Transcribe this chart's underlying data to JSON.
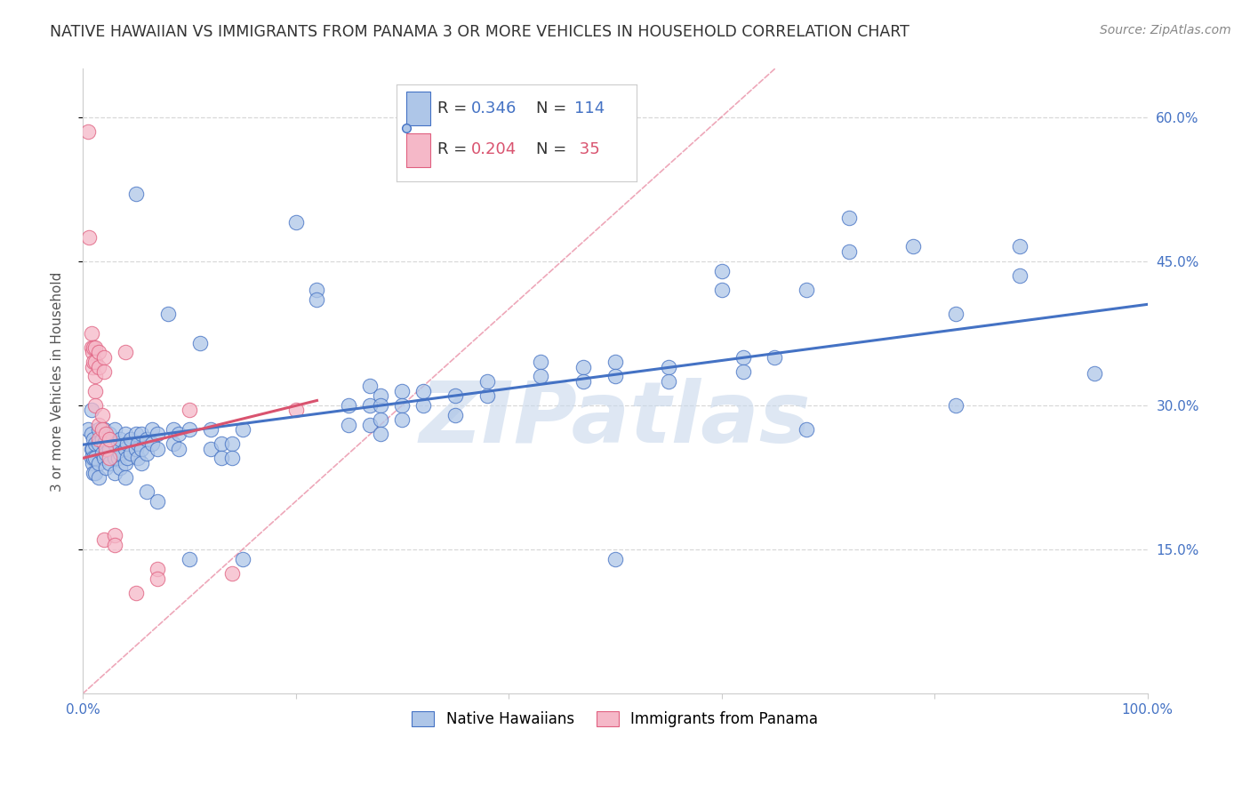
{
  "title": "NATIVE HAWAIIAN VS IMMIGRANTS FROM PANAMA 3 OR MORE VEHICLES IN HOUSEHOLD CORRELATION CHART",
  "source": "Source: ZipAtlas.com",
  "ylabel": "3 or more Vehicles in Household",
  "xmin": 0.0,
  "xmax": 1.0,
  "ymin": 0.0,
  "ymax": 0.65,
  "yticks": [
    0.15,
    0.3,
    0.45,
    0.6
  ],
  "ytick_labels": [
    "15.0%",
    "30.0%",
    "45.0%",
    "60.0%"
  ],
  "blue_color": "#aec6e8",
  "blue_edge_color": "#4472c4",
  "pink_color": "#f5b8c8",
  "pink_edge_color": "#e06080",
  "blue_line_color": "#4472c4",
  "pink_line_color": "#d9536f",
  "text_color": "#4472c4",
  "blue_scatter": [
    [
      0.005,
      0.275
    ],
    [
      0.008,
      0.295
    ],
    [
      0.008,
      0.27
    ],
    [
      0.008,
      0.255
    ],
    [
      0.008,
      0.245
    ],
    [
      0.009,
      0.255
    ],
    [
      0.009,
      0.24
    ],
    [
      0.01,
      0.265
    ],
    [
      0.01,
      0.245
    ],
    [
      0.01,
      0.23
    ],
    [
      0.012,
      0.26
    ],
    [
      0.012,
      0.245
    ],
    [
      0.012,
      0.23
    ],
    [
      0.015,
      0.275
    ],
    [
      0.015,
      0.26
    ],
    [
      0.015,
      0.24
    ],
    [
      0.015,
      0.225
    ],
    [
      0.018,
      0.265
    ],
    [
      0.018,
      0.25
    ],
    [
      0.02,
      0.275
    ],
    [
      0.02,
      0.26
    ],
    [
      0.02,
      0.245
    ],
    [
      0.022,
      0.265
    ],
    [
      0.022,
      0.25
    ],
    [
      0.022,
      0.235
    ],
    [
      0.025,
      0.27
    ],
    [
      0.025,
      0.255
    ],
    [
      0.025,
      0.24
    ],
    [
      0.03,
      0.275
    ],
    [
      0.03,
      0.26
    ],
    [
      0.03,
      0.245
    ],
    [
      0.03,
      0.23
    ],
    [
      0.033,
      0.26
    ],
    [
      0.033,
      0.245
    ],
    [
      0.035,
      0.265
    ],
    [
      0.035,
      0.25
    ],
    [
      0.035,
      0.235
    ],
    [
      0.04,
      0.27
    ],
    [
      0.04,
      0.255
    ],
    [
      0.04,
      0.24
    ],
    [
      0.04,
      0.225
    ],
    [
      0.042,
      0.26
    ],
    [
      0.042,
      0.245
    ],
    [
      0.045,
      0.265
    ],
    [
      0.045,
      0.25
    ],
    [
      0.05,
      0.52
    ],
    [
      0.05,
      0.27
    ],
    [
      0.05,
      0.255
    ],
    [
      0.052,
      0.26
    ],
    [
      0.052,
      0.245
    ],
    [
      0.055,
      0.27
    ],
    [
      0.055,
      0.255
    ],
    [
      0.055,
      0.24
    ],
    [
      0.06,
      0.265
    ],
    [
      0.06,
      0.25
    ],
    [
      0.06,
      0.21
    ],
    [
      0.065,
      0.275
    ],
    [
      0.065,
      0.26
    ],
    [
      0.07,
      0.27
    ],
    [
      0.07,
      0.255
    ],
    [
      0.07,
      0.2
    ],
    [
      0.08,
      0.395
    ],
    [
      0.085,
      0.275
    ],
    [
      0.085,
      0.26
    ],
    [
      0.09,
      0.27
    ],
    [
      0.09,
      0.255
    ],
    [
      0.1,
      0.275
    ],
    [
      0.1,
      0.14
    ],
    [
      0.11,
      0.365
    ],
    [
      0.12,
      0.275
    ],
    [
      0.12,
      0.255
    ],
    [
      0.13,
      0.26
    ],
    [
      0.13,
      0.245
    ],
    [
      0.14,
      0.26
    ],
    [
      0.14,
      0.245
    ],
    [
      0.15,
      0.275
    ],
    [
      0.15,
      0.14
    ],
    [
      0.2,
      0.49
    ],
    [
      0.22,
      0.42
    ],
    [
      0.22,
      0.41
    ],
    [
      0.25,
      0.3
    ],
    [
      0.25,
      0.28
    ],
    [
      0.27,
      0.32
    ],
    [
      0.27,
      0.3
    ],
    [
      0.27,
      0.28
    ],
    [
      0.28,
      0.31
    ],
    [
      0.28,
      0.3
    ],
    [
      0.28,
      0.285
    ],
    [
      0.28,
      0.27
    ],
    [
      0.3,
      0.315
    ],
    [
      0.3,
      0.3
    ],
    [
      0.3,
      0.285
    ],
    [
      0.32,
      0.315
    ],
    [
      0.32,
      0.3
    ],
    [
      0.35,
      0.31
    ],
    [
      0.35,
      0.29
    ],
    [
      0.38,
      0.325
    ],
    [
      0.38,
      0.31
    ],
    [
      0.43,
      0.345
    ],
    [
      0.43,
      0.33
    ],
    [
      0.47,
      0.34
    ],
    [
      0.47,
      0.325
    ],
    [
      0.5,
      0.345
    ],
    [
      0.5,
      0.33
    ],
    [
      0.5,
      0.14
    ],
    [
      0.55,
      0.34
    ],
    [
      0.55,
      0.325
    ],
    [
      0.6,
      0.44
    ],
    [
      0.6,
      0.42
    ],
    [
      0.62,
      0.35
    ],
    [
      0.62,
      0.335
    ],
    [
      0.65,
      0.35
    ],
    [
      0.68,
      0.42
    ],
    [
      0.68,
      0.275
    ],
    [
      0.72,
      0.495
    ],
    [
      0.72,
      0.46
    ],
    [
      0.78,
      0.465
    ],
    [
      0.82,
      0.395
    ],
    [
      0.82,
      0.3
    ],
    [
      0.88,
      0.465
    ],
    [
      0.88,
      0.435
    ],
    [
      0.95,
      0.333
    ]
  ],
  "pink_scatter": [
    [
      0.005,
      0.585
    ],
    [
      0.006,
      0.475
    ],
    [
      0.008,
      0.375
    ],
    [
      0.008,
      0.36
    ],
    [
      0.009,
      0.355
    ],
    [
      0.009,
      0.34
    ],
    [
      0.01,
      0.36
    ],
    [
      0.01,
      0.345
    ],
    [
      0.012,
      0.36
    ],
    [
      0.012,
      0.345
    ],
    [
      0.012,
      0.33
    ],
    [
      0.012,
      0.315
    ],
    [
      0.012,
      0.3
    ],
    [
      0.015,
      0.355
    ],
    [
      0.015,
      0.34
    ],
    [
      0.015,
      0.28
    ],
    [
      0.015,
      0.265
    ],
    [
      0.018,
      0.29
    ],
    [
      0.018,
      0.275
    ],
    [
      0.02,
      0.35
    ],
    [
      0.02,
      0.335
    ],
    [
      0.02,
      0.16
    ],
    [
      0.022,
      0.27
    ],
    [
      0.022,
      0.255
    ],
    [
      0.025,
      0.265
    ],
    [
      0.025,
      0.245
    ],
    [
      0.03,
      0.165
    ],
    [
      0.03,
      0.155
    ],
    [
      0.04,
      0.355
    ],
    [
      0.05,
      0.105
    ],
    [
      0.07,
      0.13
    ],
    [
      0.07,
      0.12
    ],
    [
      0.1,
      0.295
    ],
    [
      0.14,
      0.125
    ],
    [
      0.2,
      0.295
    ]
  ],
  "blue_trend": [
    0.0,
    0.259,
    1.0,
    0.405
  ],
  "pink_trend": [
    0.0,
    0.245,
    0.22,
    0.305
  ],
  "ref_line": [
    0.0,
    0.0,
    0.65,
    0.65
  ],
  "watermark": "ZIPatlas",
  "watermark_color": "#c8d8ec",
  "background_color": "#ffffff",
  "grid_color": "#d8d8d8",
  "title_fontsize": 12.5,
  "source_fontsize": 10,
  "axis_label_fontsize": 11,
  "tick_fontsize": 11,
  "legend_fontsize": 13
}
